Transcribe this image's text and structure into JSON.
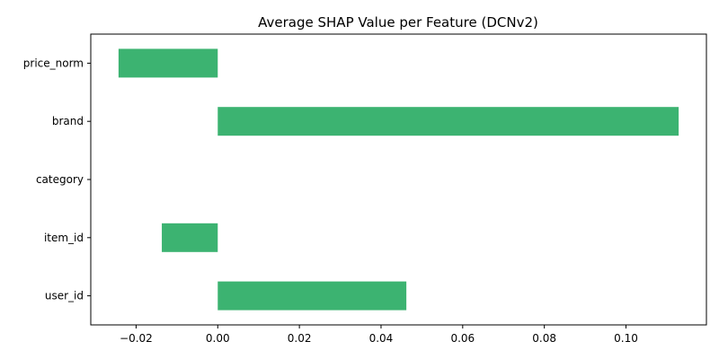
{
  "chart_data": {
    "type": "bar",
    "orientation": "horizontal",
    "title": "Average SHAP Value per Feature (DCNv2)",
    "xlabel": "",
    "ylabel": "",
    "categories": [
      "price_norm",
      "brand",
      "category",
      "item_id",
      "user_id"
    ],
    "values": [
      -0.0243,
      0.1129,
      0.0,
      -0.0137,
      0.0462
    ],
    "xlim": [
      -0.0311,
      0.1197
    ],
    "xticks": [
      -0.02,
      0.0,
      0.02,
      0.04,
      0.06,
      0.08,
      0.1
    ],
    "xtick_labels": [
      "−0.02",
      "0.00",
      "0.02",
      "0.04",
      "0.06",
      "0.08",
      "0.10"
    ],
    "bar_color": "#3cb371",
    "grid": false,
    "legend": "none"
  }
}
